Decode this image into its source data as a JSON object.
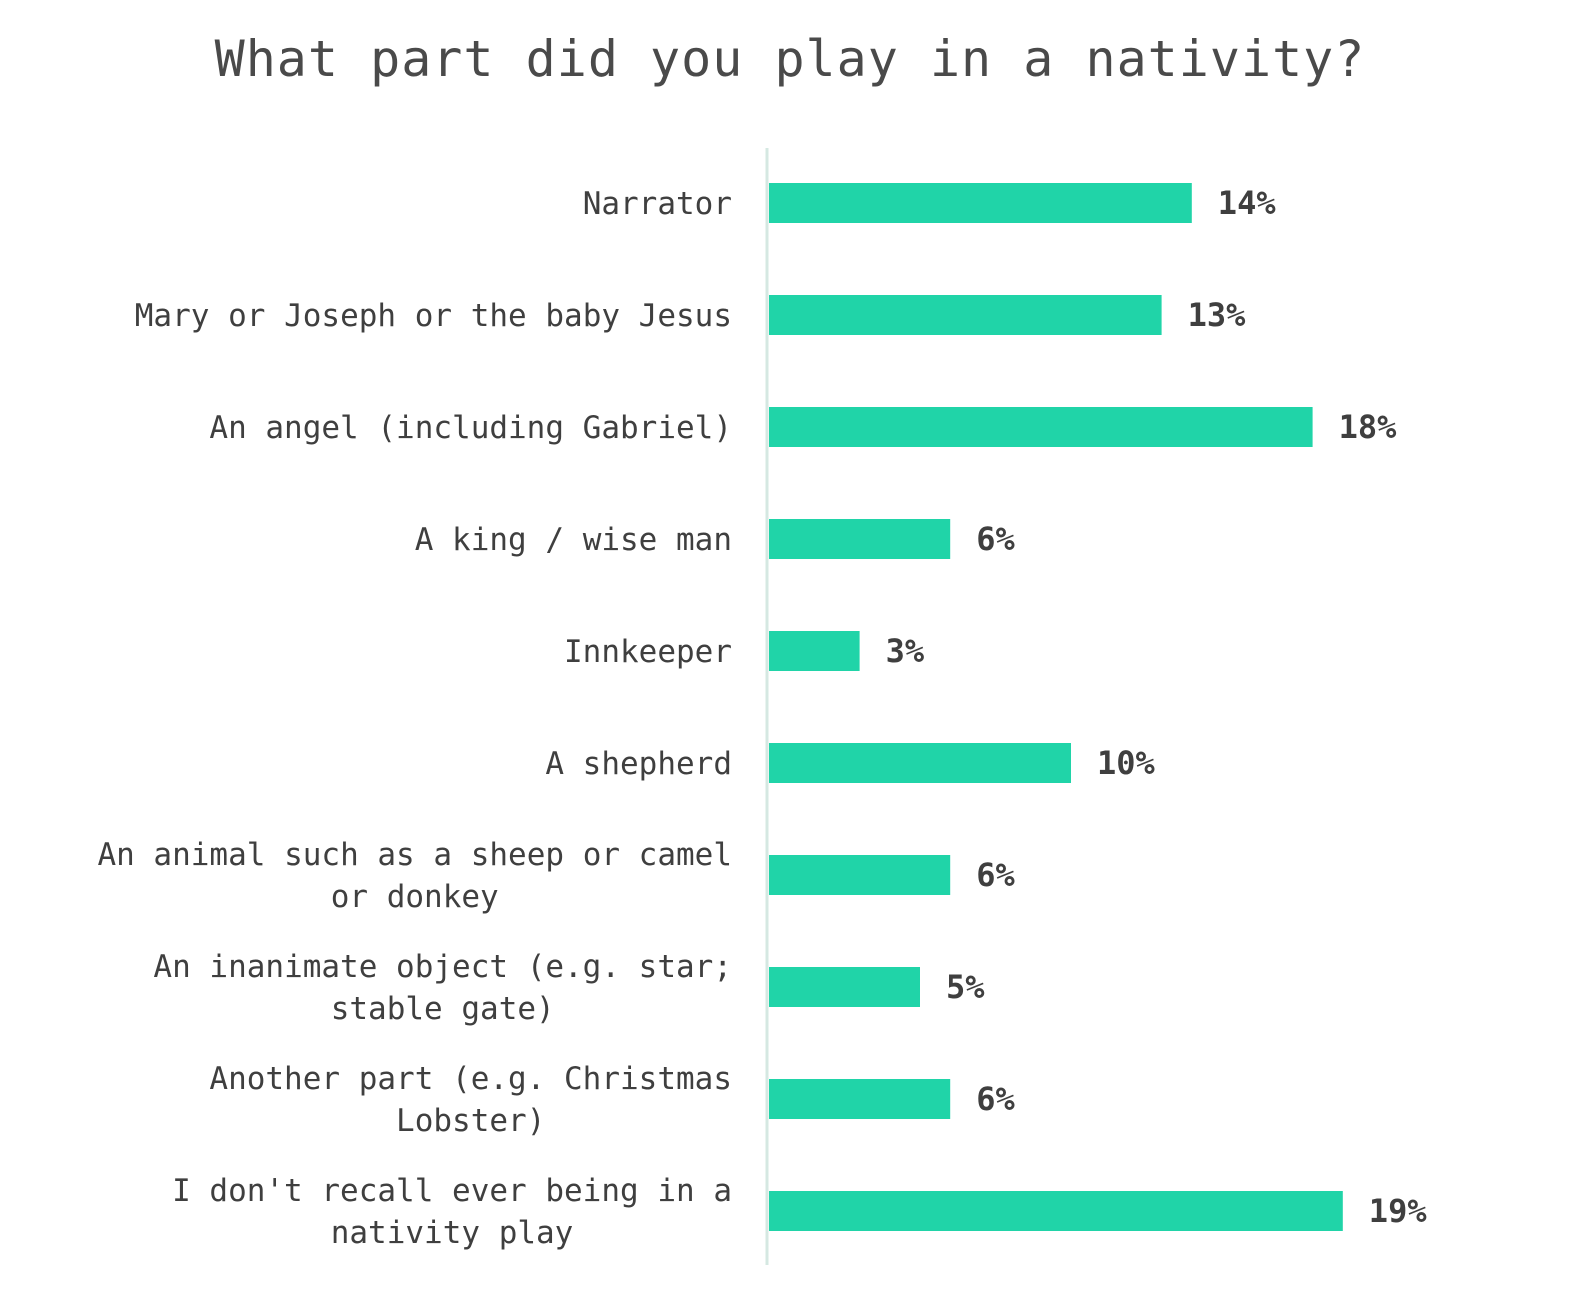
{
  "chart_data": {
    "type": "bar",
    "orientation": "horizontal",
    "title": "What part did you play in a nativity?",
    "categories": [
      [
        "Narrator"
      ],
      [
        "Mary or Joseph or the baby Jesus"
      ],
      [
        "An angel (including Gabriel)"
      ],
      [
        "A king / wise man"
      ],
      [
        "Innkeeper"
      ],
      [
        "A shepherd"
      ],
      [
        "An animal such as a sheep or camel",
        "or donkey"
      ],
      [
        "An inanimate object (e.g. star;",
        "stable gate)"
      ],
      [
        "Another part (e.g. Christmas",
        "Lobster)"
      ],
      [
        "I don't recall ever being in a",
        "nativity play"
      ]
    ],
    "values": [
      14,
      13,
      18,
      6,
      3,
      10,
      6,
      5,
      6,
      19
    ],
    "value_labels": [
      "14%",
      "13%",
      "18%",
      "6%",
      "3%",
      "10%",
      "6%",
      "5%",
      "6%",
      "19%"
    ],
    "xlim": [
      0,
      20
    ],
    "bar_color": "#20d4a8",
    "axis_color": "#d5e8e2",
    "grid": false,
    "legend": "none"
  }
}
